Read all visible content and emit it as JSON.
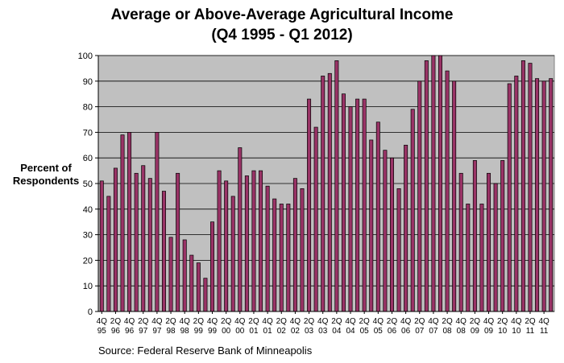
{
  "chart_data": {
    "type": "bar",
    "title": "Average or Above-Average Agricultural Income",
    "subtitle": "(Q4 1995 - Q1 2012)",
    "ylabel_line1": "Percent of",
    "ylabel_line2": "Respondents",
    "source": "Source: Federal Reserve Bank of Minneapolis",
    "ylim": [
      0,
      100
    ],
    "yticks": [
      0,
      10,
      20,
      30,
      40,
      50,
      60,
      70,
      80,
      90,
      100
    ],
    "grid": true,
    "plot_background": "#c0c0c0",
    "bar_color": "#993366",
    "categories": [
      "4Q95",
      "1Q96",
      "2Q96",
      "3Q96",
      "4Q96",
      "1Q97",
      "2Q97",
      "3Q97",
      "4Q97",
      "1Q98",
      "2Q98",
      "3Q98",
      "4Q98",
      "1Q99",
      "2Q99",
      "3Q99",
      "4Q99",
      "1Q00",
      "2Q00",
      "3Q00",
      "4Q00",
      "1Q01",
      "2Q01",
      "3Q01",
      "4Q01",
      "1Q02",
      "2Q02",
      "3Q02",
      "4Q02",
      "1Q03",
      "2Q03",
      "3Q03",
      "4Q03",
      "1Q04",
      "2Q04",
      "3Q04",
      "4Q04",
      "1Q05",
      "2Q05",
      "3Q05",
      "4Q05",
      "1Q06",
      "2Q06",
      "3Q06",
      "4Q06",
      "1Q07",
      "2Q07",
      "3Q07",
      "4Q07",
      "1Q08",
      "2Q08",
      "3Q08",
      "4Q08",
      "1Q09",
      "2Q09",
      "3Q09",
      "4Q09",
      "1Q10",
      "2Q10",
      "3Q10",
      "4Q10",
      "1Q11",
      "2Q11",
      "3Q11",
      "4Q11",
      "1Q12"
    ],
    "tick_labels": [
      {
        "top": "4Q",
        "bottom": "95"
      },
      {
        "top": "2Q",
        "bottom": "96"
      },
      {
        "top": "4Q",
        "bottom": "96"
      },
      {
        "top": "2Q",
        "bottom": "97"
      },
      {
        "top": "4Q",
        "bottom": "97"
      },
      {
        "top": "2Q",
        "bottom": "98"
      },
      {
        "top": "4Q",
        "bottom": "98"
      },
      {
        "top": "2Q",
        "bottom": "99"
      },
      {
        "top": "4Q",
        "bottom": "99"
      },
      {
        "top": "2Q",
        "bottom": "00"
      },
      {
        "top": "4Q",
        "bottom": "00"
      },
      {
        "top": "2Q",
        "bottom": "01"
      },
      {
        "top": "4Q",
        "bottom": "01"
      },
      {
        "top": "2Q",
        "bottom": "02"
      },
      {
        "top": "4Q",
        "bottom": "02"
      },
      {
        "top": "2Q",
        "bottom": "03"
      },
      {
        "top": "4Q",
        "bottom": "03"
      },
      {
        "top": "2Q",
        "bottom": "04"
      },
      {
        "top": "4Q",
        "bottom": "04"
      },
      {
        "top": "2Q",
        "bottom": "05"
      },
      {
        "top": "4Q",
        "bottom": "05"
      },
      {
        "top": "2Q",
        "bottom": "06"
      },
      {
        "top": "4Q",
        "bottom": "06"
      },
      {
        "top": "2Q",
        "bottom": "07"
      },
      {
        "top": "4Q",
        "bottom": "07"
      },
      {
        "top": "2Q",
        "bottom": "08"
      },
      {
        "top": "4Q",
        "bottom": "08"
      },
      {
        "top": "2Q",
        "bottom": "09"
      },
      {
        "top": "4Q",
        "bottom": "09"
      },
      {
        "top": "2Q",
        "bottom": "10"
      },
      {
        "top": "4Q",
        "bottom": "10"
      },
      {
        "top": "2Q",
        "bottom": "11"
      },
      {
        "top": "4Q",
        "bottom": "11"
      }
    ],
    "values": [
      51,
      45,
      56,
      69,
      70,
      54,
      57,
      52,
      70,
      47,
      29,
      54,
      28,
      22,
      19,
      13,
      35,
      55,
      51,
      45,
      64,
      53,
      55,
      55,
      49,
      44,
      42,
      42,
      52,
      48,
      83,
      72,
      92,
      93,
      98,
      85,
      80,
      83,
      83,
      67,
      74,
      63,
      60,
      48,
      65,
      79,
      90,
      98,
      100,
      100,
      94,
      90,
      54,
      42,
      59,
      42,
      54,
      50,
      59,
      89,
      92,
      98,
      97,
      91,
      90,
      91
    ]
  }
}
